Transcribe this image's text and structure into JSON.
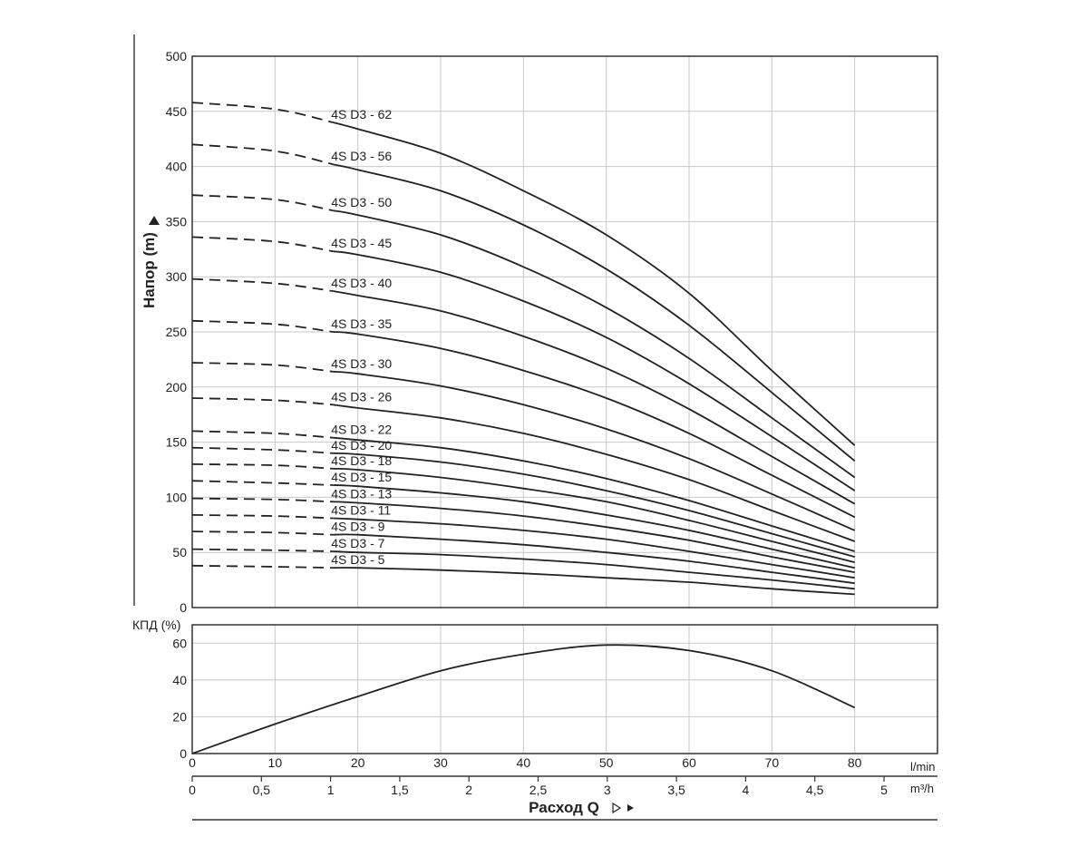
{
  "chart_data": [
    {
      "type": "line",
      "ylabel": "Напор (m)",
      "xlabel": "",
      "xlim": [
        0,
        90
      ],
      "ylim": [
        0,
        500
      ],
      "y_ticks": [
        "0",
        "50",
        "100",
        "150",
        "200",
        "250",
        "300",
        "350",
        "400",
        "450",
        "500"
      ],
      "grid": true,
      "dashed_until_x": 17,
      "x": [
        0,
        10,
        17,
        20,
        30,
        40,
        50,
        60,
        70,
        80
      ],
      "series": [
        {
          "name": "4S D3 - 62",
          "values": [
            458,
            452,
            440,
            434,
            412,
            378,
            338,
            285,
            215,
            147
          ]
        },
        {
          "name": "4S D3 - 56",
          "values": [
            420,
            414,
            402,
            397,
            378,
            347,
            307,
            256,
            195,
            133
          ]
        },
        {
          "name": "4S D3 - 50",
          "values": [
            374,
            370,
            360,
            356,
            338,
            309,
            272,
            226,
            172,
            118
          ]
        },
        {
          "name": "4S D3 - 45",
          "values": [
            336,
            332,
            323,
            320,
            304,
            278,
            245,
            203,
            155,
            106
          ]
        },
        {
          "name": "4S D3 - 40",
          "values": [
            298,
            294,
            287,
            283,
            269,
            246,
            217,
            180,
            137,
            94
          ]
        },
        {
          "name": "4S D3 - 35",
          "values": [
            260,
            257,
            250,
            248,
            235,
            215,
            190,
            158,
            120,
            82
          ]
        },
        {
          "name": "4S D3 - 30",
          "values": [
            222,
            220,
            214,
            212,
            201,
            184,
            162,
            135,
            103,
            70
          ]
        },
        {
          "name": "4S D3 - 26",
          "values": [
            190,
            188,
            184,
            181,
            172,
            158,
            139,
            116,
            88,
            60
          ]
        },
        {
          "name": "4S D3 - 22",
          "values": [
            160,
            158,
            154,
            152,
            145,
            133,
            117,
            97,
            74,
            51
          ]
        },
        {
          "name": "4S D3 - 20",
          "values": [
            145,
            143,
            140,
            139,
            132,
            121,
            106,
            88,
            67,
            46
          ]
        },
        {
          "name": "4S D3 - 18",
          "values": [
            130,
            129,
            126,
            125,
            118,
            108,
            96,
            79,
            60,
            41
          ]
        },
        {
          "name": "4S D3 - 15",
          "values": [
            115,
            113,
            111,
            110,
            104,
            96,
            84,
            70,
            53,
            36
          ]
        },
        {
          "name": "4S D3 - 13",
          "values": [
            99,
            98,
            96,
            95,
            90,
            83,
            73,
            61,
            46,
            32
          ]
        },
        {
          "name": "4S D3 - 11",
          "values": [
            84,
            83,
            81,
            80,
            76,
            70,
            62,
            51,
            39,
            27
          ]
        },
        {
          "name": "4S D3 - 9",
          "values": [
            69,
            68,
            66,
            66,
            62,
            57,
            50,
            42,
            32,
            22
          ]
        },
        {
          "name": "4S D3 - 7",
          "values": [
            53,
            52,
            51,
            50,
            48,
            44,
            39,
            32,
            25,
            17
          ]
        },
        {
          "name": "4S D3 - 5",
          "values": [
            38,
            37,
            36,
            36,
            34,
            31,
            27,
            23,
            17,
            12
          ]
        }
      ]
    },
    {
      "type": "line",
      "ylabel": "КПД (%)",
      "xlabel": "Расход Q",
      "xlim": [
        0,
        90
      ],
      "ylim": [
        0,
        70
      ],
      "y_ticks": [
        "0",
        "20",
        "40",
        "60"
      ],
      "x_ticks": [
        "0",
        "10",
        "20",
        "30",
        "40",
        "50",
        "60",
        "70",
        "80"
      ],
      "x_unit": "l/min",
      "secondary_x_ticks": [
        "0",
        "0,5",
        "1",
        "1,5",
        "2",
        "2,5",
        "3",
        "3,5",
        "4",
        "4,5",
        "5"
      ],
      "secondary_x_unit": "m³/h",
      "grid": true,
      "x": [
        0,
        10,
        20,
        30,
        40,
        50,
        60,
        70,
        80
      ],
      "series": [
        {
          "name": "",
          "values": [
            0,
            16,
            31,
            45,
            54,
            59,
            56,
            45,
            25
          ]
        }
      ]
    }
  ]
}
